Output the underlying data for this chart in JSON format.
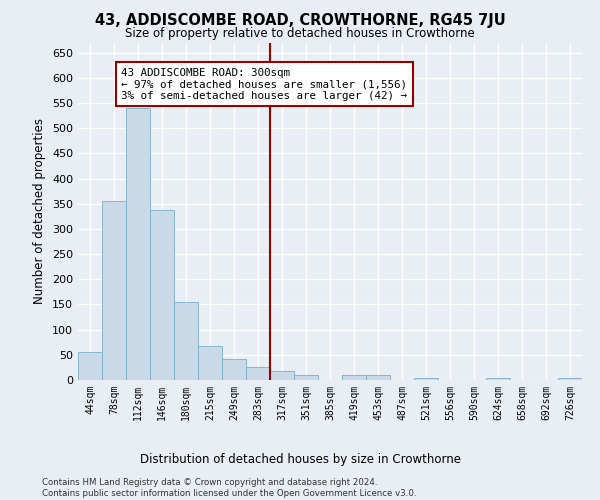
{
  "title": "43, ADDISCOMBE ROAD, CROWTHORNE, RG45 7JU",
  "subtitle": "Size of property relative to detached houses in Crowthorne",
  "xlabel": "Distribution of detached houses by size in Crowthorne",
  "ylabel": "Number of detached properties",
  "bar_color": "#c9d9e8",
  "bar_edge_color": "#7aafc8",
  "background_color": "#e8eef4",
  "fig_background_color": "#e8eef4",
  "grid_color": "#ffffff",
  "categories": [
    "44sqm",
    "78sqm",
    "112sqm",
    "146sqm",
    "180sqm",
    "215sqm",
    "249sqm",
    "283sqm",
    "317sqm",
    "351sqm",
    "385sqm",
    "419sqm",
    "453sqm",
    "487sqm",
    "521sqm",
    "556sqm",
    "590sqm",
    "624sqm",
    "658sqm",
    "692sqm",
    "726sqm"
  ],
  "values": [
    55,
    355,
    540,
    338,
    155,
    68,
    42,
    25,
    18,
    10,
    0,
    10,
    10,
    0,
    4,
    0,
    0,
    4,
    0,
    0,
    4
  ],
  "ylim": [
    0,
    670
  ],
  "yticks": [
    0,
    50,
    100,
    150,
    200,
    250,
    300,
    350,
    400,
    450,
    500,
    550,
    600,
    650
  ],
  "property_line_x": 7.5,
  "property_line_color": "#990000",
  "annotation_line1": "43 ADDISCOMBE ROAD: 300sqm",
  "annotation_line2": "← 97% of detached houses are smaller (1,556)",
  "annotation_line3": "3% of semi-detached houses are larger (42) →",
  "annotation_box_color": "#990000",
  "footer_line1": "Contains HM Land Registry data © Crown copyright and database right 2024.",
  "footer_line2": "Contains public sector information licensed under the Open Government Licence v3.0."
}
